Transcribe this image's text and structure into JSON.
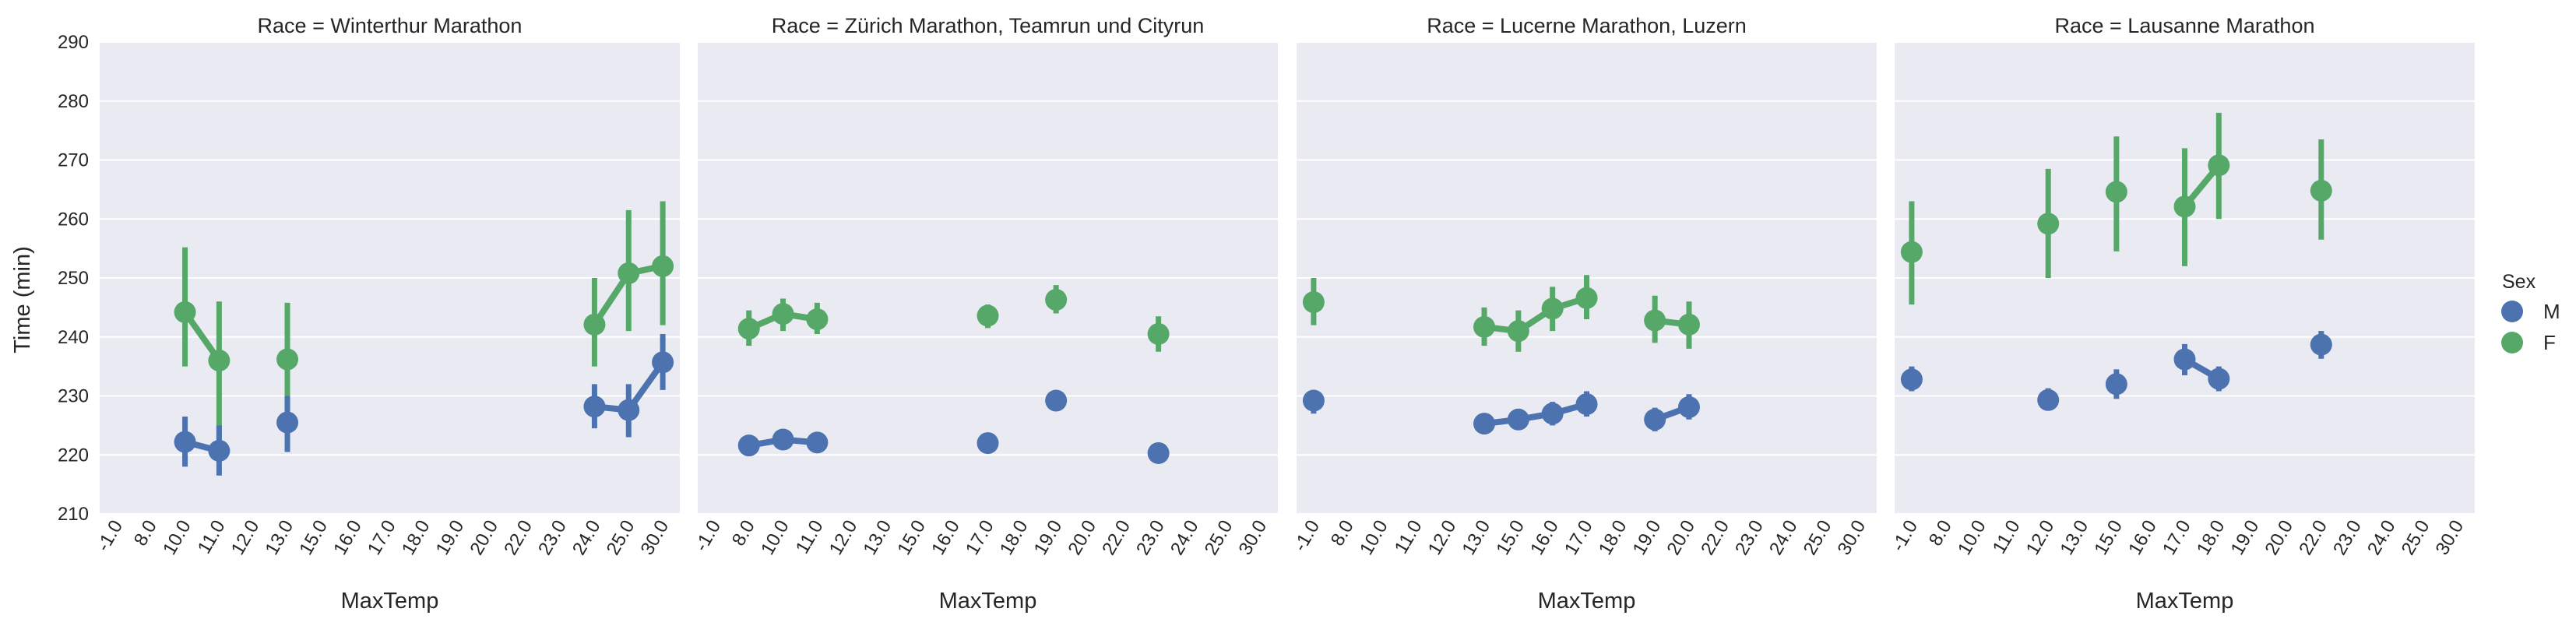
{
  "chart_data": {
    "type": "line",
    "ylabel": "Time (min)",
    "xlabel": "MaxTemp",
    "ylim": [
      210,
      290
    ],
    "yticks": [
      "210",
      "220",
      "230",
      "240",
      "250",
      "260",
      "270",
      "280",
      "290"
    ],
    "categories": [
      "-1.0",
      "8.0",
      "10.0",
      "11.0",
      "12.0",
      "13.0",
      "15.0",
      "16.0",
      "17.0",
      "18.0",
      "19.0",
      "20.0",
      "22.0",
      "23.0",
      "24.0",
      "25.0",
      "30.0"
    ],
    "grid": true,
    "legend": {
      "title": "Sex",
      "placement": "right",
      "entries": [
        {
          "label": "M",
          "color": "#4c72b0"
        },
        {
          "label": "F",
          "color": "#55a868"
        }
      ]
    },
    "colors": {
      "M": "#4c72b0",
      "F": "#55a868",
      "background": "#eaeaf2",
      "grid": "#ffffff"
    },
    "panels": [
      {
        "title": "Race = Winterthur Marathon",
        "series": [
          {
            "name": "M",
            "points": [
              {
                "x": "10.0",
                "y": 222.2,
                "lo": 218.0,
                "hi": 226.5
              },
              {
                "x": "11.0",
                "y": 220.7,
                "lo": 216.5,
                "hi": 225.0
              },
              {
                "x": "13.0",
                "y": 225.5,
                "lo": 220.5,
                "hi": 230.0
              },
              {
                "x": "24.0",
                "y": 228.2,
                "lo": 224.5,
                "hi": 232.0
              },
              {
                "x": "25.0",
                "y": 227.6,
                "lo": 223.0,
                "hi": 232.0
              },
              {
                "x": "30.0",
                "y": 235.7,
                "lo": 231.0,
                "hi": 240.5
              }
            ]
          },
          {
            "name": "F",
            "points": [
              {
                "x": "10.0",
                "y": 244.2,
                "lo": 235.0,
                "hi": 255.2
              },
              {
                "x": "11.0",
                "y": 236.0,
                "lo": 222.0,
                "hi": 246.0
              },
              {
                "x": "13.0",
                "y": 236.2,
                "lo": 227.0,
                "hi": 245.8
              },
              {
                "x": "24.0",
                "y": 242.1,
                "lo": 235.0,
                "hi": 250.0
              },
              {
                "x": "25.0",
                "y": 250.8,
                "lo": 241.0,
                "hi": 261.5
              },
              {
                "x": "30.0",
                "y": 252.0,
                "lo": 242.0,
                "hi": 263.0
              }
            ]
          }
        ]
      },
      {
        "title": "Race = Zürich Marathon, Teamrun und Cityrun",
        "series": [
          {
            "name": "M",
            "points": [
              {
                "x": "8.0",
                "y": 221.6,
                "lo": 220.3,
                "hi": 222.9
              },
              {
                "x": "10.0",
                "y": 222.6,
                "lo": 221.3,
                "hi": 223.9
              },
              {
                "x": "11.0",
                "y": 222.1,
                "lo": 220.8,
                "hi": 223.4
              },
              {
                "x": "17.0",
                "y": 222.0,
                "lo": 220.7,
                "hi": 223.3
              },
              {
                "x": "19.0",
                "y": 229.2,
                "lo": 227.9,
                "hi": 230.5
              },
              {
                "x": "23.0",
                "y": 220.3,
                "lo": 219.0,
                "hi": 221.6
              }
            ]
          },
          {
            "name": "F",
            "points": [
              {
                "x": "8.0",
                "y": 241.4,
                "lo": 238.5,
                "hi": 244.5
              },
              {
                "x": "10.0",
                "y": 243.9,
                "lo": 241.0,
                "hi": 246.5
              },
              {
                "x": "11.0",
                "y": 243.0,
                "lo": 240.5,
                "hi": 245.8
              },
              {
                "x": "17.0",
                "y": 243.6,
                "lo": 241.5,
                "hi": 245.5
              },
              {
                "x": "19.0",
                "y": 246.3,
                "lo": 244.0,
                "hi": 248.8
              },
              {
                "x": "23.0",
                "y": 240.5,
                "lo": 237.5,
                "hi": 243.5
              }
            ]
          }
        ]
      },
      {
        "title": "Race = Lucerne Marathon, Luzern",
        "series": [
          {
            "name": "M",
            "points": [
              {
                "x": "-1.0",
                "y": 229.2,
                "lo": 227.0,
                "hi": 231.0
              },
              {
                "x": "13.0",
                "y": 225.3,
                "lo": 223.5,
                "hi": 227.0
              },
              {
                "x": "15.0",
                "y": 226.0,
                "lo": 224.3,
                "hi": 227.8
              },
              {
                "x": "16.0",
                "y": 227.0,
                "lo": 225.0,
                "hi": 229.0
              },
              {
                "x": "17.0",
                "y": 228.6,
                "lo": 226.5,
                "hi": 230.8
              },
              {
                "x": "19.0",
                "y": 226.0,
                "lo": 224.0,
                "hi": 228.0
              },
              {
                "x": "20.0",
                "y": 228.1,
                "lo": 226.0,
                "hi": 230.3
              }
            ]
          },
          {
            "name": "F",
            "points": [
              {
                "x": "-1.0",
                "y": 245.9,
                "lo": 242.0,
                "hi": 250.0
              },
              {
                "x": "13.0",
                "y": 241.7,
                "lo": 238.5,
                "hi": 245.0
              },
              {
                "x": "15.0",
                "y": 241.0,
                "lo": 237.5,
                "hi": 244.5
              },
              {
                "x": "16.0",
                "y": 244.8,
                "lo": 241.0,
                "hi": 248.5
              },
              {
                "x": "17.0",
                "y": 246.6,
                "lo": 243.0,
                "hi": 250.5
              },
              {
                "x": "19.0",
                "y": 242.8,
                "lo": 239.0,
                "hi": 247.0
              },
              {
                "x": "20.0",
                "y": 242.1,
                "lo": 238.0,
                "hi": 246.0
              }
            ]
          }
        ]
      },
      {
        "title": "Race = Lausanne Marathon",
        "series": [
          {
            "name": "M",
            "points": [
              {
                "x": "-1.0",
                "y": 232.8,
                "lo": 230.8,
                "hi": 235.0
              },
              {
                "x": "12.0",
                "y": 229.3,
                "lo": 227.5,
                "hi": 231.3
              },
              {
                "x": "15.0",
                "y": 232.0,
                "lo": 229.5,
                "hi": 234.5
              },
              {
                "x": "17.0",
                "y": 236.2,
                "lo": 233.5,
                "hi": 238.8
              },
              {
                "x": "18.0",
                "y": 232.9,
                "lo": 230.8,
                "hi": 235.0
              },
              {
                "x": "22.0",
                "y": 238.7,
                "lo": 236.3,
                "hi": 241.0
              }
            ]
          },
          {
            "name": "F",
            "points": [
              {
                "x": "-1.0",
                "y": 254.4,
                "lo": 245.5,
                "hi": 263.0
              },
              {
                "x": "12.0",
                "y": 259.2,
                "lo": 250.0,
                "hi": 268.5
              },
              {
                "x": "15.0",
                "y": 264.6,
                "lo": 254.5,
                "hi": 274.0
              },
              {
                "x": "17.0",
                "y": 262.1,
                "lo": 252.0,
                "hi": 272.0
              },
              {
                "x": "18.0",
                "y": 269.1,
                "lo": 260.0,
                "hi": 278.0
              },
              {
                "x": "22.0",
                "y": 264.8,
                "lo": 256.5,
                "hi": 273.5
              }
            ]
          }
        ]
      }
    ]
  }
}
